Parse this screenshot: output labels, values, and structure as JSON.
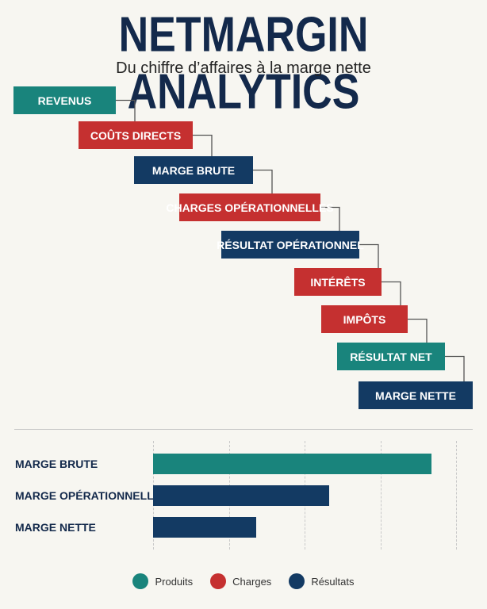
{
  "title": "NETMARGIN ANALYTICS",
  "subtitle": "Du chiffre d’affaires à la marge nette",
  "colors": {
    "produits": "#19847c",
    "charges": "#c53030",
    "resultats": "#133a63",
    "background": "#f7f6f1",
    "title": "#13294b"
  },
  "steps": [
    {
      "label": "REVENUS",
      "category": "produits"
    },
    {
      "label": "COÛTS DIRECTS",
      "category": "charges"
    },
    {
      "label": "MARGE BRUTE",
      "category": "resultats"
    },
    {
      "label": "CHARGES OPÉRATIONNELLES",
      "category": "charges"
    },
    {
      "label": "RÉSULTAT OPÉRATIONNEL",
      "category": "resultats"
    },
    {
      "label": "INTÉRÊTS",
      "category": "charges"
    },
    {
      "label": "IMPÔTS",
      "category": "charges"
    },
    {
      "label": "RÉSULTAT NET",
      "category": "produits"
    },
    {
      "label": "MARGE NETTE",
      "category": "resultats"
    }
  ],
  "chart_data": {
    "type": "bar",
    "orientation": "horizontal",
    "categories": [
      "MARGE BRUTE",
      "MARGE OPÉRATIONNELLE",
      "MARGE NETTE"
    ],
    "values": [
      92,
      58,
      34
    ],
    "xlim": [
      0,
      100
    ],
    "grid": true,
    "series_colors": [
      "produits",
      "resultats",
      "resultats"
    ]
  },
  "legend": [
    {
      "label": "Produits",
      "color": "produits"
    },
    {
      "label": "Charges",
      "color": "charges"
    },
    {
      "label": "Résultats",
      "color": "resultats"
    }
  ]
}
